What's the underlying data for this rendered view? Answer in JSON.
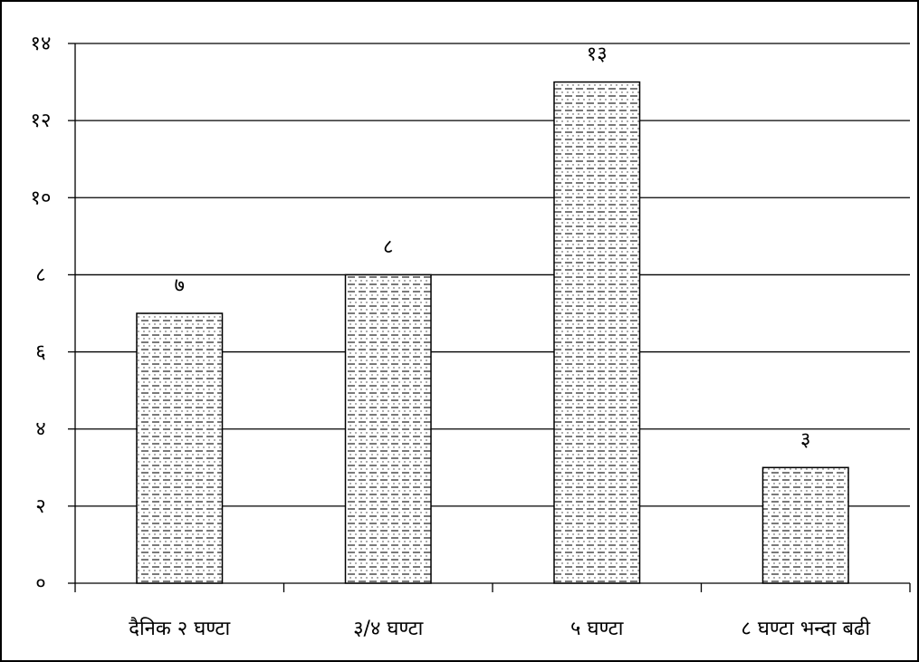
{
  "chart_data": {
    "type": "bar",
    "title": "",
    "xlabel": "",
    "ylabel": "",
    "categories": [
      "दैनिक २ घण्टा",
      "३/४ घण्टा",
      "५ घण्टा",
      "८ घण्टा भन्दा बढी"
    ],
    "values": [
      7,
      8,
      13,
      3
    ],
    "value_labels": [
      "७",
      "८",
      "१३",
      "३"
    ],
    "ylim": [
      0,
      14
    ],
    "y_ticks": [
      0,
      2,
      4,
      6,
      8,
      10,
      12,
      14
    ],
    "y_tick_labels": [
      "०",
      "२",
      "४",
      "६",
      "८",
      "१०",
      "१२",
      "१४"
    ],
    "grid": true,
    "legend": "none",
    "bar_fill_pattern": "dashed-dotted",
    "colors": {
      "bar_fill": "#ffffff",
      "bar_pattern": "#000000",
      "axis": "#000000",
      "gridline": "#000000",
      "frame": "#000000"
    }
  }
}
